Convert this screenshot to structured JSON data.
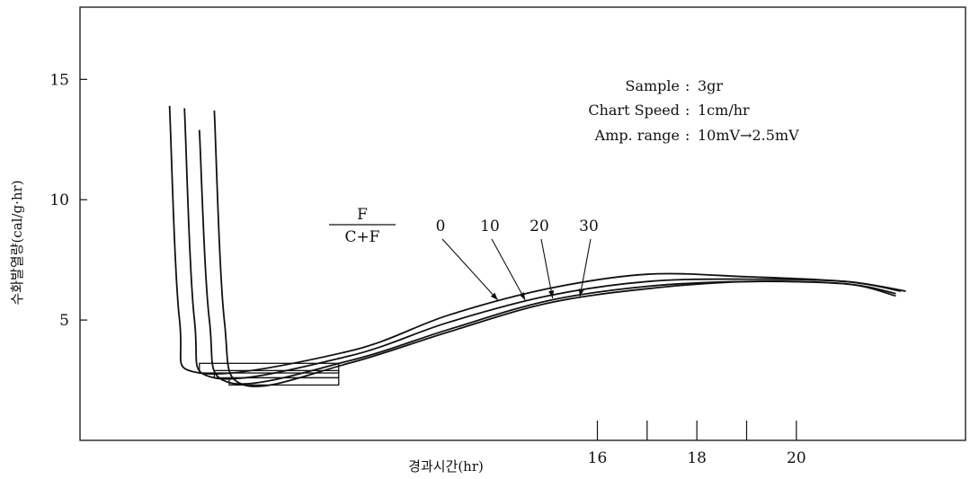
{
  "chart_data": {
    "type": "line",
    "title": "",
    "xlabel": "경과시간(hr)",
    "ylabel": "수화발열량(cal/g·hr)",
    "ylim": [
      0,
      18
    ],
    "xlim": [
      5.6,
      23.4
    ],
    "yticks": [
      5,
      10,
      15
    ],
    "xticks": [
      16,
      18,
      20
    ],
    "xminor_ticks": [
      17,
      19
    ],
    "grid": false,
    "notes": [
      {
        "key": "Sample",
        "sep": ":",
        "value": "3gr"
      },
      {
        "key": "Chart Speed",
        "sep": ":",
        "value": "1cm/hr"
      },
      {
        "key": "Amp. range",
        "sep": ":",
        "value": "10mV→2.5mV"
      }
    ],
    "ratio_label": {
      "numerator": "F",
      "denominator": "C+F"
    },
    "series": [
      {
        "name": "0",
        "x": [
          7.4,
          7.6,
          8.0,
          11.0,
          13.0,
          15.0,
          17.0,
          19.0,
          21.0,
          22.2
        ],
        "y": [
          13.9,
          5.0,
          2.8,
          3.7,
          5.2,
          6.3,
          6.9,
          6.8,
          6.6,
          6.2
        ]
      },
      {
        "name": "10",
        "x": [
          7.7,
          7.9,
          8.3,
          11.0,
          13.0,
          15.0,
          17.0,
          19.0,
          21.0,
          22.1
        ],
        "y": [
          13.8,
          5.0,
          2.6,
          3.5,
          4.9,
          6.0,
          6.6,
          6.7,
          6.6,
          6.2
        ]
      },
      {
        "name": "20",
        "x": [
          8.0,
          8.2,
          8.6,
          11.0,
          13.0,
          15.0,
          17.0,
          19.0,
          21.0,
          22.0
        ],
        "y": [
          12.9,
          5.0,
          2.4,
          3.3,
          4.6,
          5.8,
          6.4,
          6.6,
          6.5,
          6.1
        ]
      },
      {
        "name": "30",
        "x": [
          8.3,
          8.5,
          8.9,
          11.0,
          13.0,
          15.0,
          17.0,
          19.0,
          21.0,
          22.0
        ],
        "y": [
          13.7,
          5.0,
          2.3,
          3.2,
          4.5,
          5.7,
          6.3,
          6.6,
          6.5,
          6.0
        ]
      }
    ],
    "step_regions": [
      {
        "x_start": 8.0,
        "x_end": 10.8,
        "y_top": 3.2,
        "y_bottom": 2.8
      },
      {
        "x_start": 8.3,
        "x_end": 10.8,
        "y_top": 2.9,
        "y_bottom": 2.6
      },
      {
        "x_start": 8.6,
        "x_end": 10.8,
        "y_top": 2.6,
        "y_bottom": 2.3
      }
    ]
  }
}
